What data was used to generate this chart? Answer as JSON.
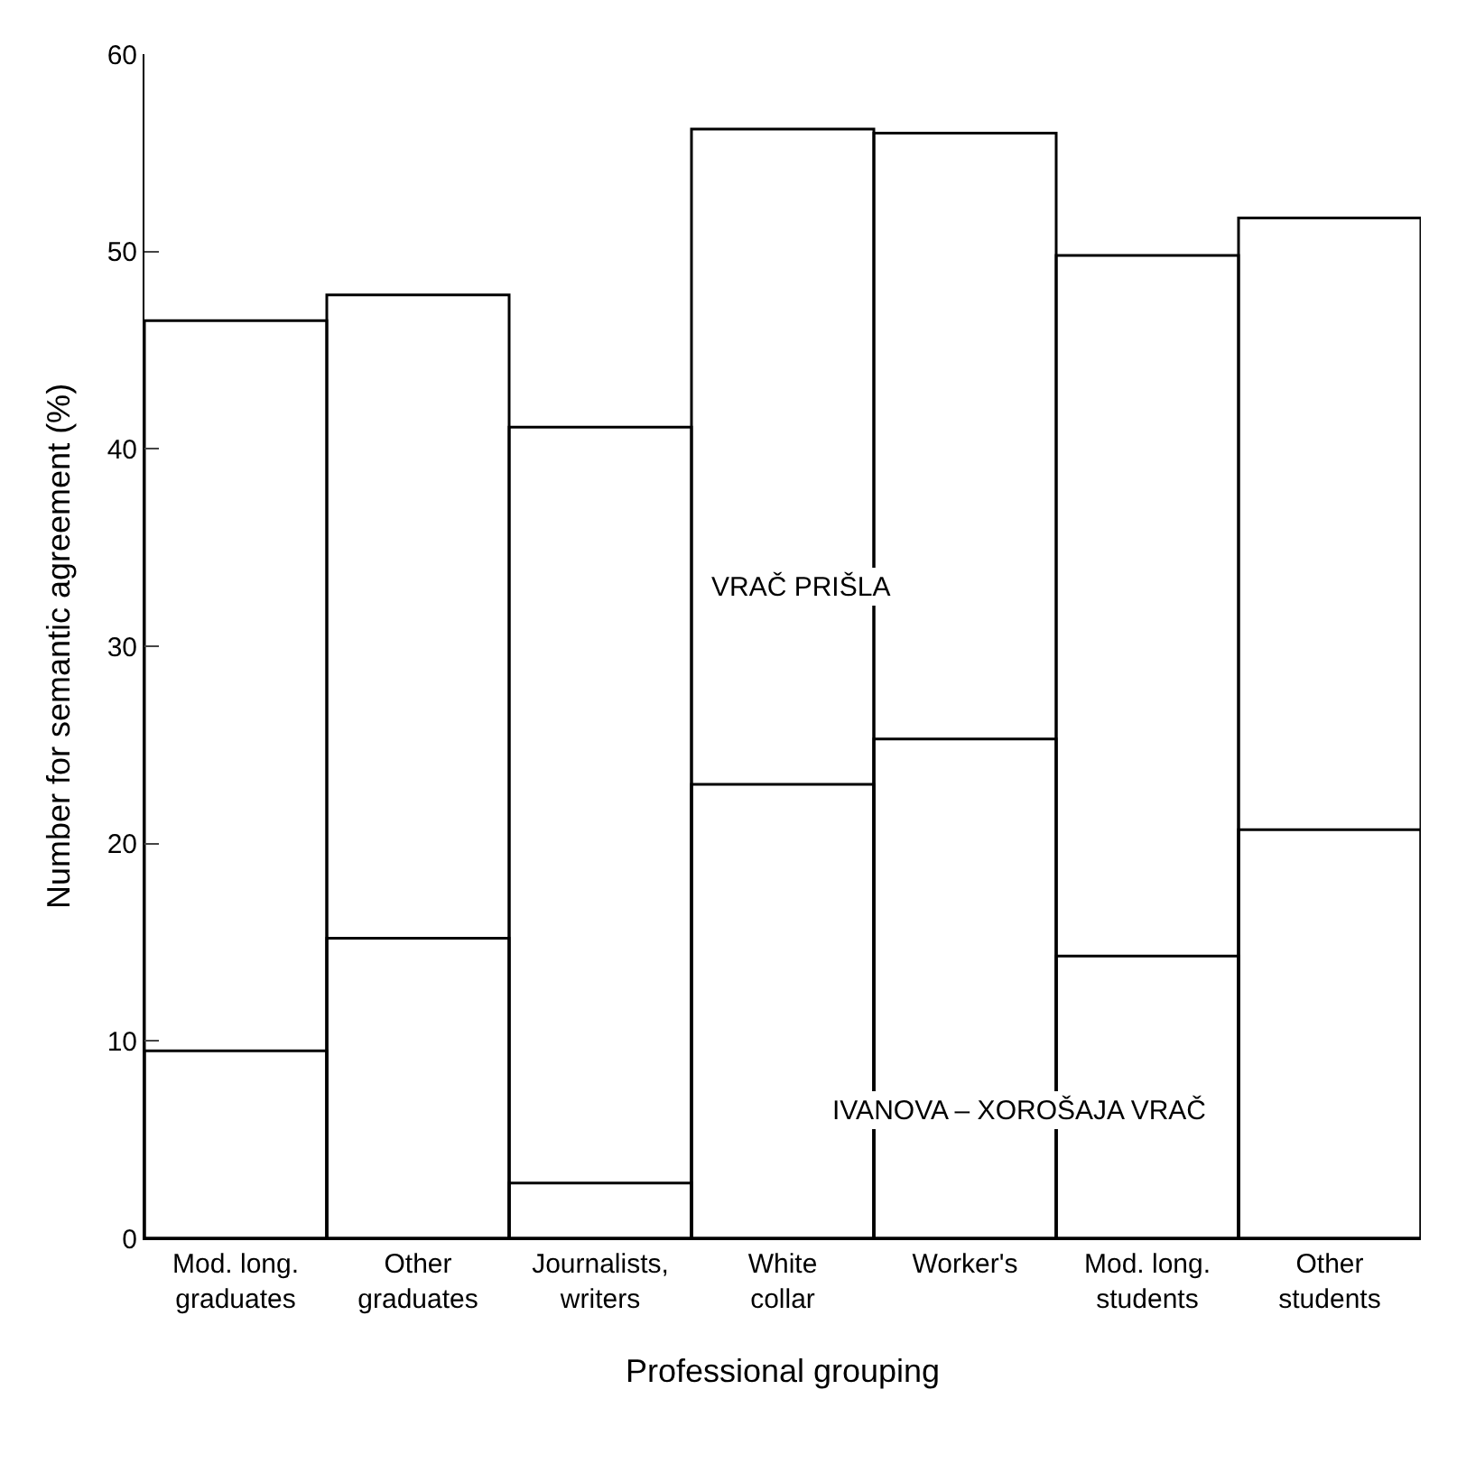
{
  "chart_data": {
    "type": "bar",
    "xlabel": "Professional grouping",
    "ylabel": "Number for semantic agreement (%)",
    "categories": [
      "Mod. long.\ngraduates",
      "Other\ngraduates",
      "Journalists,\nwriters",
      "White\ncollar",
      "Worker's",
      "Mod. long.\nstudents",
      "Other\nstudents"
    ],
    "series": [
      {
        "name": "VRAČ PRIŠLA",
        "color": "#000000",
        "values": [
          46.5,
          47.8,
          41.1,
          56.2,
          56.0,
          49.8,
          51.7
        ]
      },
      {
        "name": "IVANOVA – XOROŠAJA VRAČ",
        "color": "#000000",
        "values": [
          9.5,
          15.2,
          2.8,
          23.0,
          25.3,
          14.3,
          20.7
        ]
      }
    ],
    "ylim": [
      0,
      60
    ],
    "yticks": [
      0,
      10,
      20,
      30,
      40,
      50,
      60
    ],
    "legend": false
  }
}
